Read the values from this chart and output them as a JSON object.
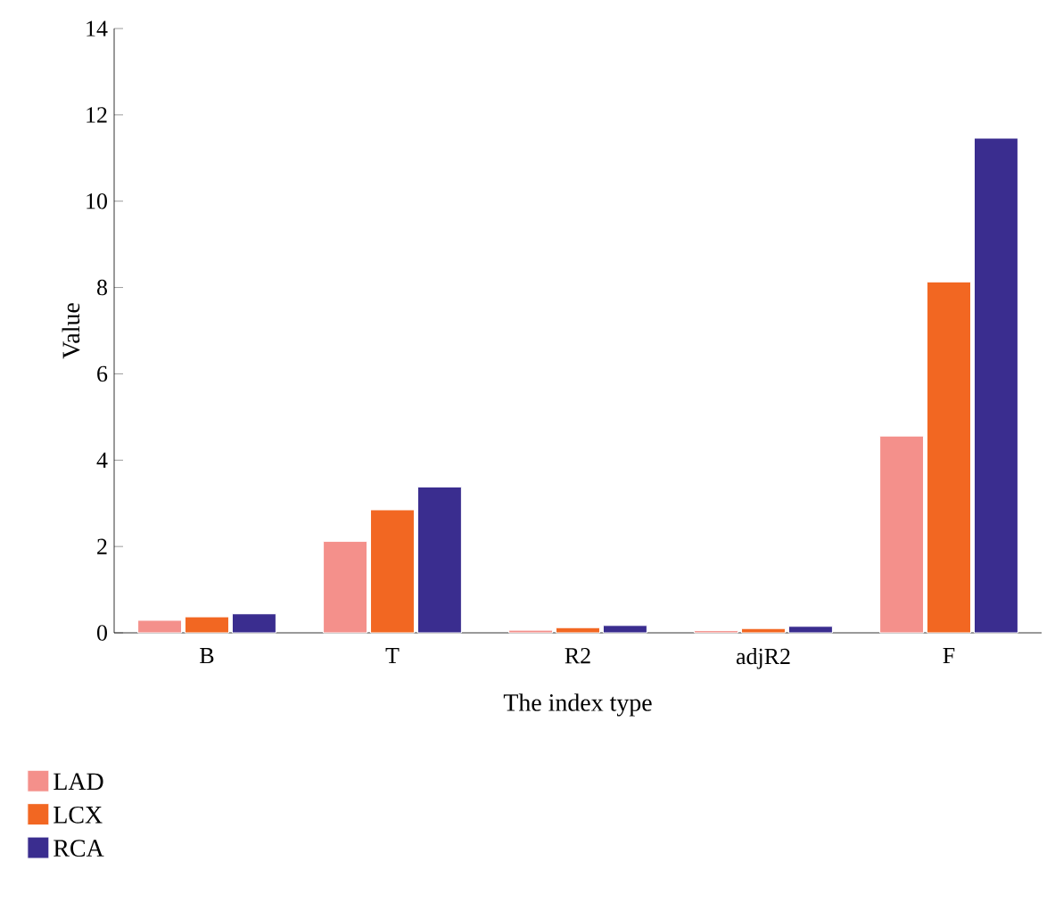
{
  "chart_data": {
    "type": "bar",
    "xlabel": "The index type",
    "ylabel": "Value",
    "categories": [
      "B",
      "T",
      "R2",
      "adjR2",
      "F"
    ],
    "series": [
      {
        "name": "LAD",
        "color": "#f4908b",
        "values": [
          0.29,
          2.12,
          0.06,
          0.05,
          4.56
        ]
      },
      {
        "name": "LCX",
        "color": "#f26722",
        "values": [
          0.37,
          2.85,
          0.12,
          0.1,
          8.13
        ]
      },
      {
        "name": "RCA",
        "color": "#3a2d8f",
        "values": [
          0.44,
          3.38,
          0.17,
          0.15,
          11.46
        ]
      }
    ],
    "ylim": [
      0,
      14
    ],
    "yticks": [
      0,
      2,
      4,
      6,
      8,
      10,
      12,
      14
    ],
    "legend": "bottom left",
    "grid": false
  }
}
